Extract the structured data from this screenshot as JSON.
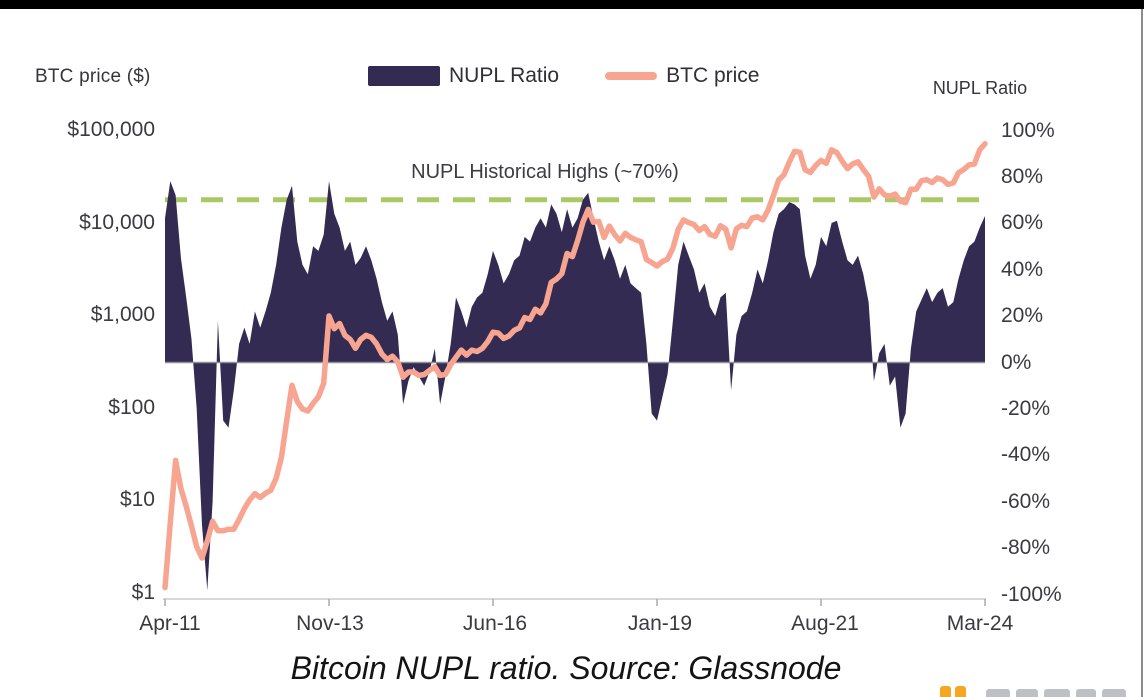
{
  "caption": "Bitcoin NUPL ratio. Source: Glassnode",
  "header": {
    "left_axis_title": "BTC price ($)",
    "right_axis_title": "NUPL Ratio"
  },
  "legend": {
    "items": [
      {
        "label": "NUPL Ratio",
        "type": "area",
        "color": "#332b52"
      },
      {
        "label": "BTC price",
        "type": "line",
        "color": "#f7a591"
      }
    ]
  },
  "watermark": {
    "description": "partially visible logo cut off by bottom edge",
    "orange": "#f5a623",
    "gray": "#bdc0c4"
  },
  "chart_data": {
    "type": "area",
    "title": "",
    "x_start": "2011-04",
    "x_end": "2024-03",
    "x_tick_labels": [
      "Apr-11",
      "Nov-13",
      "Jun-16",
      "Jan-19",
      "Aug-21",
      "Mar-24"
    ],
    "x_tick_month_indices": [
      0,
      31,
      62,
      93,
      124,
      155
    ],
    "left_axis": {
      "title": "BTC price ($)",
      "scale": "log",
      "range": [
        1,
        100000
      ],
      "tick_labels": [
        "$100,000",
        "$10,000",
        "$1,000",
        "$100",
        "$10",
        "$1"
      ]
    },
    "right_axis": {
      "title": "NUPL Ratio",
      "scale": "linear",
      "range": [
        -100,
        100
      ],
      "tick_labels": [
        "100%",
        "80%",
        "60%",
        "40%",
        "20%",
        "0%",
        "-20%",
        "-40%",
        "-60%",
        "-80%",
        "-100%"
      ]
    },
    "annotation": {
      "text": "NUPL Historical Highs (~70%)",
      "value": 70,
      "color": "#a9c964",
      "style": "dashed"
    },
    "grid": false,
    "legend_position": "top-center",
    "series": [
      {
        "name": "NUPL Ratio",
        "axis": "right",
        "type": "area",
        "color": "#332b52",
        "unit": "%",
        "values": [
          62,
          78,
          72,
          45,
          28,
          10,
          -20,
          -70,
          -98,
          -60,
          18,
          -25,
          -28,
          -12,
          8,
          15,
          8,
          22,
          15,
          22,
          30,
          42,
          58,
          70,
          76,
          52,
          42,
          38,
          50,
          48,
          55,
          78,
          64,
          58,
          48,
          52,
          42,
          45,
          50,
          44,
          36,
          26,
          18,
          22,
          12,
          -18,
          -8,
          -2,
          -6,
          -10,
          -4,
          6,
          -18,
          -6,
          8,
          28,
          22,
          15,
          24,
          28,
          30,
          38,
          48,
          42,
          34,
          38,
          44,
          46,
          54,
          52,
          58,
          62,
          58,
          68,
          64,
          56,
          66,
          58,
          62,
          70,
          73,
          62,
          52,
          44,
          50,
          44,
          36,
          42,
          34,
          32,
          30,
          8,
          -22,
          -25,
          -15,
          -5,
          18,
          42,
          52,
          46,
          40,
          30,
          34,
          24,
          20,
          28,
          30,
          -12,
          12,
          20,
          22,
          30,
          40,
          34,
          44,
          56,
          64,
          66,
          69,
          68,
          66,
          46,
          36,
          42,
          54,
          50,
          60,
          61,
          52,
          44,
          42,
          46,
          38,
          26,
          -8,
          4,
          8,
          -10,
          -6,
          -28,
          -22,
          6,
          22,
          27,
          32,
          26,
          30,
          32,
          24,
          26,
          36,
          44,
          50,
          52,
          58,
          63
        ]
      },
      {
        "name": "BTC price",
        "axis": "left",
        "type": "line",
        "color": "#f7a591",
        "unit": "$",
        "values": [
          1.2,
          6,
          28,
          14,
          9,
          5.5,
          3.3,
          2.5,
          3.8,
          6.2,
          4.9,
          4.9,
          5.1,
          5.1,
          6.5,
          8.5,
          10.5,
          12.3,
          11.2,
          12.4,
          13.4,
          18,
          30,
          75,
          180,
          120,
          100,
          95,
          115,
          135,
          190,
          1000,
          730,
          830,
          620,
          560,
          450,
          560,
          620,
          590,
          500,
          390,
          340,
          370,
          320,
          220,
          250,
          250,
          230,
          235,
          260,
          285,
          230,
          235,
          300,
          360,
          430,
          380,
          430,
          415,
          450,
          530,
          670,
          655,
          575,
          610,
          700,
          745,
          960,
          920,
          1180,
          1080,
          1350,
          2300,
          2500,
          2850,
          4700,
          4350,
          6450,
          10200,
          14000,
          10200,
          10400,
          7000,
          9250,
          7500,
          6400,
          7750,
          7000,
          6600,
          6300,
          4050,
          3750,
          3450,
          3850,
          4100,
          5350,
          8550,
          10800,
          10100,
          9600,
          8300,
          9150,
          7550,
          7200,
          9350,
          8550,
          5400,
          8650,
          9450,
          9150,
          11350,
          11650,
          10800,
          13800,
          19700,
          29000,
          33100,
          45200,
          58800,
          57750,
          37300,
          35000,
          41500,
          47100,
          43800,
          61300,
          57000,
          46200,
          38500,
          43200,
          45500,
          37650,
          31800,
          19000,
          23300,
          20050,
          19400,
          20500,
          17150,
          16550,
          23100,
          23150,
          28500,
          29250,
          27200,
          30450,
          29250,
          26000,
          26950,
          34650,
          37700,
          42250,
          42950,
          61200,
          71000
        ]
      }
    ]
  }
}
